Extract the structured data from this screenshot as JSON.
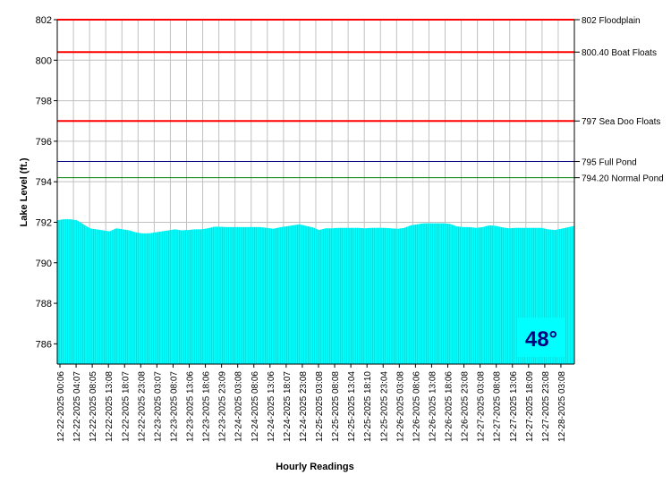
{
  "chart_data": {
    "type": "area",
    "xlabel": "Hourly Readings",
    "ylabel": "Lake Level (ft.)",
    "ylim": [
      785,
      802
    ],
    "yticks": [
      786,
      788,
      790,
      792,
      794,
      796,
      798,
      800,
      802
    ],
    "grid": true,
    "x_tick_labels": [
      "12-22-2025 00:06",
      "12-22-2025 04:07",
      "12-22-2025 08:05",
      "12-22-2025 13:08",
      "12-22-2025 18:07",
      "12-22-2025 23:08",
      "12-23-2025 03:07",
      "12-23-2025 08:07",
      "12-23-2025 13:06",
      "12-23-2025 18:06",
      "12-23-2025 23:09",
      "12-24-2025 03:08",
      "12-24-2025 08:06",
      "12-24-2025 13:06",
      "12-24-2025 18:07",
      "12-24-2025 23:08",
      "12-25-2025 03:08",
      "12-25-2025 08:08",
      "12-25-2025 13:04",
      "12-25-2025 18:10",
      "12-25-2025 23:04",
      "12-26-2025 03:08",
      "12-26-2025 08:06",
      "12-26-2025 13:08",
      "12-26-2025 18:06",
      "12-26-2025 23:08",
      "12-27-2025 03:08",
      "12-27-2025 08:08",
      "12-27-2025 13:06",
      "12-27-2025 18:09",
      "12-27-2025 23:08",
      "12-28-2025 03:08"
    ],
    "series": [
      {
        "color": "#00ffff",
        "values": [
          792.1,
          792.15,
          792.15,
          792.1,
          791.9,
          791.7,
          791.65,
          791.6,
          791.55,
          791.7,
          791.65,
          791.6,
          791.5,
          791.45,
          791.45,
          791.5,
          791.55,
          791.6,
          791.65,
          791.6,
          791.62,
          791.65,
          791.65,
          791.7,
          791.78,
          791.78,
          791.76,
          791.76,
          791.76,
          791.76,
          791.76,
          791.76,
          791.72,
          791.68,
          791.75,
          791.8,
          791.85,
          791.9,
          791.82,
          791.75,
          791.62,
          791.7,
          791.7,
          791.72,
          791.72,
          791.72,
          791.72,
          791.7,
          791.72,
          791.72,
          791.72,
          791.7,
          791.68,
          791.72,
          791.85,
          791.9,
          791.95,
          791.95,
          791.95,
          791.95,
          791.92,
          791.8,
          791.76,
          791.76,
          791.72,
          791.76,
          791.85,
          791.82,
          791.75,
          791.7,
          791.72,
          791.72,
          791.72,
          791.72,
          791.72,
          791.65,
          791.62,
          791.68,
          791.75,
          791.82
        ]
      }
    ],
    "reference_lines": [
      {
        "value": 802,
        "label": "802 Floodplain",
        "color": "#ff0000"
      },
      {
        "value": 800.4,
        "label": "800.40 Boat Floats",
        "color": "#ff0000"
      },
      {
        "value": 797,
        "label": "797 Sea Doo Floats",
        "color": "#ff0000"
      },
      {
        "value": 795,
        "label": "795 Full Pond",
        "color": "#000080"
      },
      {
        "value": 794.2,
        "label": "794.20 Normal Pond",
        "color": "#008000"
      }
    ]
  },
  "temperature": {
    "value": "48°",
    "background": "#00ffff",
    "color": "#000080"
  }
}
